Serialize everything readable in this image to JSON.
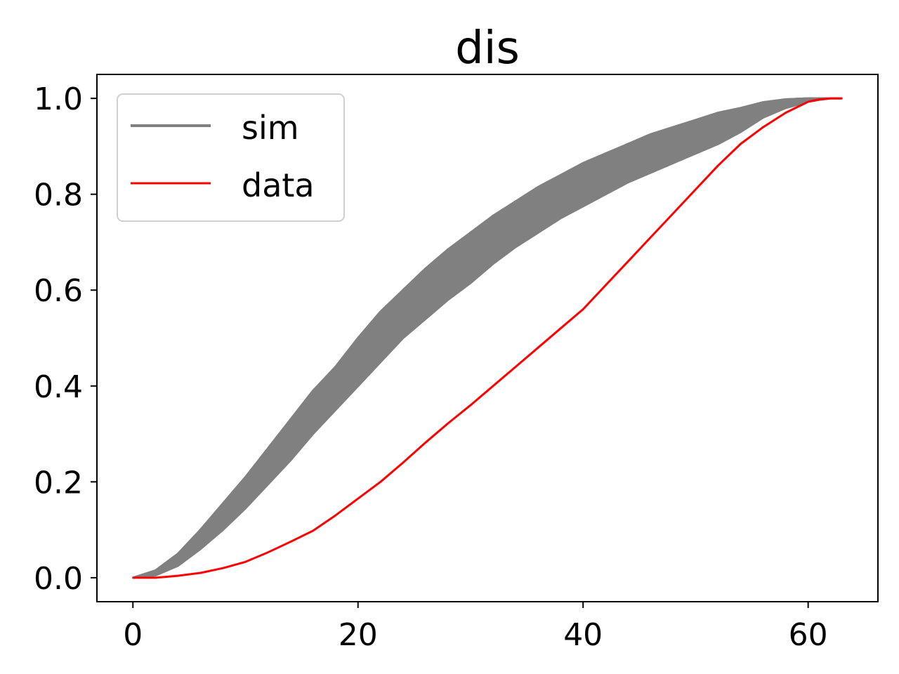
{
  "chart_data": {
    "type": "line",
    "title": "dis",
    "xlabel": "",
    "ylabel": "",
    "xlim": [
      -3.2,
      66.2
    ],
    "ylim": [
      -0.05,
      1.05
    ],
    "xticks": [
      0,
      20,
      40,
      60
    ],
    "yticks": [
      0.0,
      0.2,
      0.4,
      0.6,
      0.8,
      1.0
    ],
    "xtick_labels": [
      "0",
      "20",
      "40",
      "60"
    ],
    "ytick_labels": [
      "0.0",
      "0.2",
      "0.4",
      "0.6",
      "0.8",
      "1.0"
    ],
    "grid": false,
    "legend": {
      "placement": "top-left",
      "entries": [
        {
          "label": "sim",
          "color": "#808080"
        },
        {
          "label": "data",
          "color": "#ff0000"
        }
      ]
    },
    "sim_band": {
      "name": "sim",
      "color": "#808080",
      "x": [
        0,
        2,
        4,
        6,
        8,
        10,
        12,
        14,
        16,
        18,
        20,
        22,
        24,
        26,
        28,
        30,
        32,
        34,
        36,
        38,
        40,
        42,
        44,
        46,
        48,
        50,
        52,
        54,
        56,
        58,
        60,
        61,
        62,
        63
      ],
      "upper": [
        0.0,
        0.015,
        0.05,
        0.1,
        0.155,
        0.21,
        0.27,
        0.33,
        0.39,
        0.44,
        0.5,
        0.555,
        0.6,
        0.645,
        0.685,
        0.72,
        0.755,
        0.785,
        0.815,
        0.84,
        0.865,
        0.885,
        0.905,
        0.925,
        0.94,
        0.955,
        0.97,
        0.98,
        0.992,
        0.998,
        1.0,
        1.0,
        1.0,
        1.0
      ],
      "lower": [
        0.0,
        0.005,
        0.025,
        0.06,
        0.1,
        0.145,
        0.195,
        0.245,
        0.3,
        0.35,
        0.4,
        0.45,
        0.5,
        0.54,
        0.58,
        0.615,
        0.655,
        0.69,
        0.72,
        0.75,
        0.775,
        0.8,
        0.825,
        0.845,
        0.865,
        0.885,
        0.905,
        0.93,
        0.96,
        0.98,
        0.993,
        0.997,
        1.0,
        1.0
      ]
    },
    "series": [
      {
        "name": "data",
        "color": "#ff0000",
        "x": [
          0,
          2,
          4,
          6,
          8,
          10,
          12,
          14,
          16,
          18,
          20,
          22,
          24,
          26,
          28,
          30,
          32,
          34,
          36,
          38,
          40,
          42,
          44,
          46,
          48,
          50,
          52,
          54,
          56,
          58,
          60,
          61,
          62,
          63
        ],
        "y": [
          0.0,
          0.0,
          0.004,
          0.01,
          0.02,
          0.033,
          0.053,
          0.075,
          0.098,
          0.13,
          0.165,
          0.2,
          0.24,
          0.282,
          0.322,
          0.36,
          0.4,
          0.44,
          0.48,
          0.52,
          0.56,
          0.61,
          0.66,
          0.71,
          0.76,
          0.81,
          0.86,
          0.905,
          0.94,
          0.97,
          0.993,
          0.998,
          1.0,
          1.0
        ]
      }
    ]
  }
}
